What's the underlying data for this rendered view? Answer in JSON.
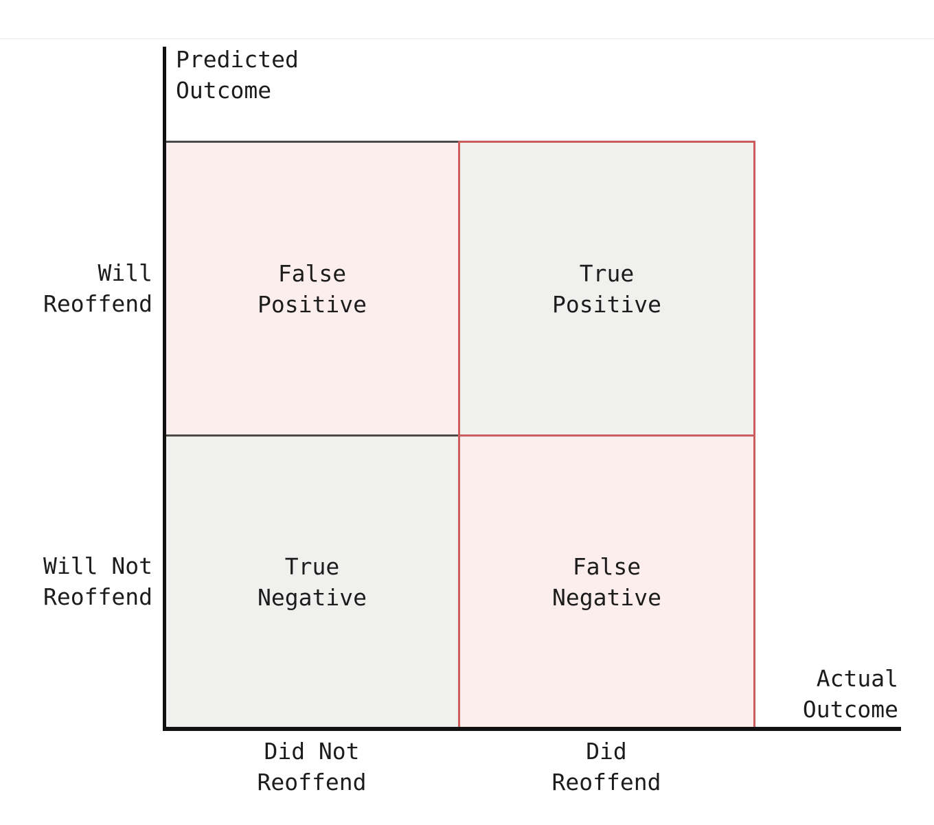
{
  "figure": {
    "type": "confusion-matrix",
    "y_axis": {
      "label": "Predicted\nOutcome"
    },
    "x_axis": {
      "label": "Actual\nOutcome"
    },
    "rows": [
      {
        "label": "Will\nReoffend"
      },
      {
        "label": "Will Not\nReoffend"
      }
    ],
    "cols": [
      {
        "label": "Did Not\nReoffend"
      },
      {
        "label": "Did\nReoffend"
      }
    ],
    "quadrants": [
      {
        "id": "false-positive",
        "label": "False\nPositive",
        "tone": "error-pink"
      },
      {
        "id": "true-positive",
        "label": "True\nPositive",
        "tone": "neutral-gray"
      },
      {
        "id": "true-negative",
        "label": "True\nNegative",
        "tone": "neutral-gray"
      },
      {
        "id": "false-negative",
        "label": "False\nNegative",
        "tone": "error-pink"
      }
    ],
    "colors": {
      "axis_black": "#111111",
      "dark_line": "#4a4a48",
      "red_line": "#cd5c5c",
      "pink_fill": "#fdeeee",
      "gray_fill": "#f0f0ef",
      "text": "#1c1c1c",
      "hairline": "#e8e8e8"
    }
  }
}
